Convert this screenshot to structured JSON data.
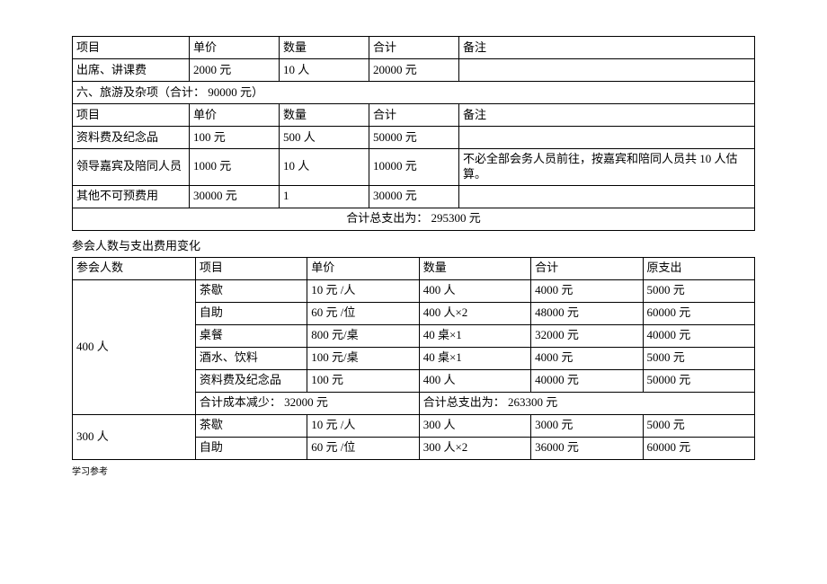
{
  "table1": {
    "headers": [
      "项目",
      "单价",
      "数量",
      "合计",
      "备注"
    ],
    "row1": {
      "c0": "出席、讲课费",
      "c1": "2000 元",
      "c2": "10 人",
      "c3": "20000 元",
      "c4": ""
    },
    "section6": "六、旅游及杂项（合计： 90000 元）",
    "headers2": [
      "项目",
      "单价",
      "数量",
      "合计",
      "备注"
    ],
    "row2": {
      "c0": "资料费及纪念品",
      "c1": "100 元",
      "c2": "500 人",
      "c3": "50000 元",
      "c4": ""
    },
    "row3": {
      "c0": "领导嘉宾及陪同人员",
      "c1": "1000 元",
      "c2": "10 人",
      "c3": "10000 元",
      "c4": "不必全部会务人员前往，按嘉宾和陪同人员共 10 人估算。"
    },
    "row4": {
      "c0": "其他不可预费用",
      "c1": "30000 元",
      "c2": "1",
      "c3": "30000 元",
      "c4": ""
    },
    "total": "合计总支出为： 295300 元"
  },
  "subtitle": "参会人数与支出费用变化",
  "table2": {
    "headers": [
      "参会人数",
      "项目",
      "单价",
      "数量",
      "合计",
      "原支出"
    ],
    "g400": {
      "label": "400 人",
      "rows": [
        {
          "c1": "茶歇",
          "c2": "10 元 /人",
          "c3": "400 人",
          "c4": "4000 元",
          "c5": "5000 元"
        },
        {
          "c1": "自助",
          "c2": "60 元 /位",
          "c3": "400 人×2",
          "c4": "48000 元",
          "c5": "60000 元"
        },
        {
          "c1": "桌餐",
          "c2": "800 元/桌",
          "c3": "40 桌×1",
          "c4": "32000 元",
          "c5": "40000 元"
        },
        {
          "c1": "酒水、饮料",
          "c2": "100 元/桌",
          "c3": "40 桌×1",
          "c4": "4000 元",
          "c5": "5000 元"
        },
        {
          "c1": "资料费及纪念品",
          "c2": "100 元",
          "c3": "400 人",
          "c4": "40000 元",
          "c5": "50000 元"
        }
      ],
      "sum_left": "合计成本减少： 32000 元",
      "sum_right": "合计总支出为： 263300 元"
    },
    "g300": {
      "label": "300 人",
      "rows": [
        {
          "c1": "茶歇",
          "c2": "10 元 /人",
          "c3": "300 人",
          "c4": "3000 元",
          "c5": "5000 元"
        },
        {
          "c1": "自助",
          "c2": "60 元 /位",
          "c3": "300 人×2",
          "c4": "36000 元",
          "c5": "60000 元"
        }
      ]
    }
  },
  "footer": "学习参考"
}
